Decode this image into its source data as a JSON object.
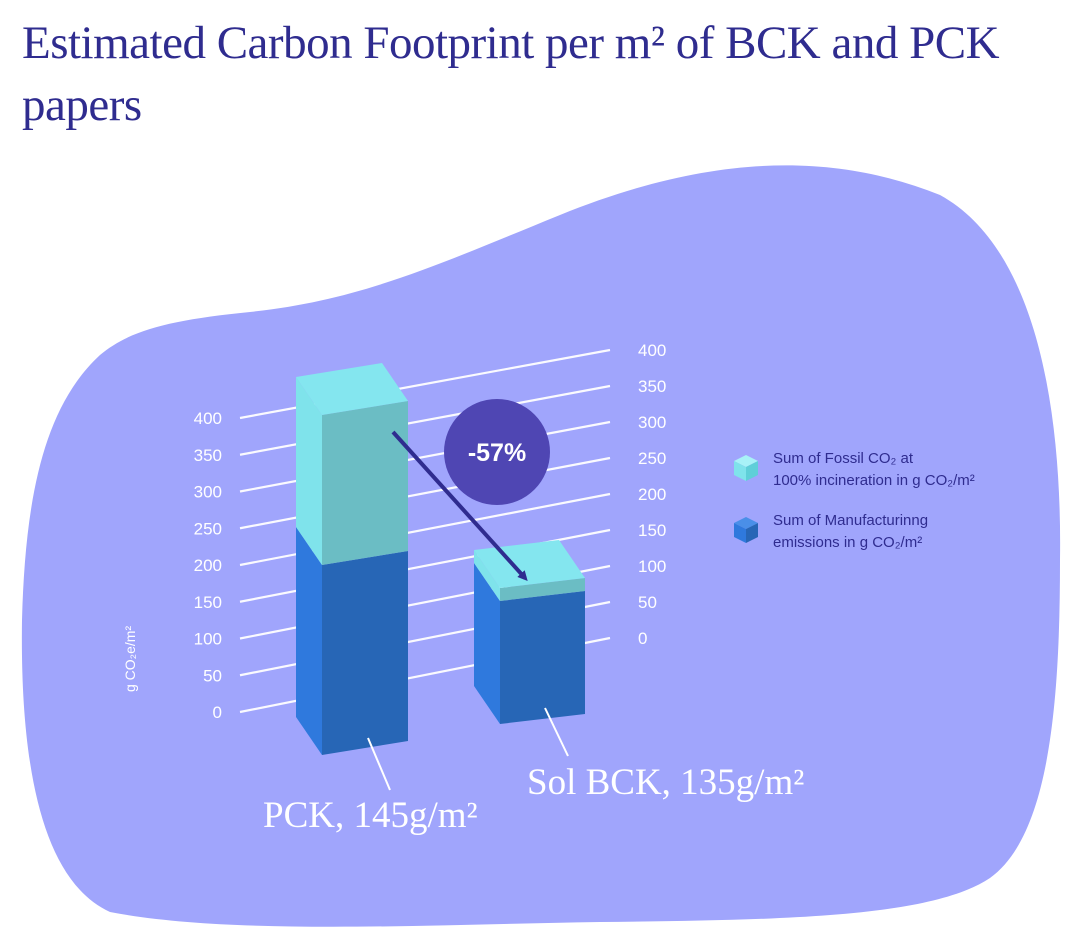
{
  "title": "Estimated Carbon Footprint per m² of BCK and PCK papers",
  "colors": {
    "blob": "#a0a5fc",
    "title": "#2f2c8f",
    "fossil_front": "#6bbdc4",
    "fossil_side": "#7fe3eb",
    "fossil_top": "#84e6ef",
    "manufacturing_front": "#2766b6",
    "manufacturing_side": "#2f79dd",
    "badge": "#4f46b3",
    "arrow": "#2f2c8f"
  },
  "chart_data": {
    "type": "bar",
    "stacked": true,
    "three_d": true,
    "categories": [
      "PCK, 145g/m²",
      "Sol BCK, 135g/m²"
    ],
    "series": [
      {
        "name": "Sum of Manufacturinng emissions in g CO₂/m²",
        "icon": "blue-cube-icon",
        "values": [
          190,
          123
        ]
      },
      {
        "name": "Sum of Fossil CO₂ at 100% incineration in g CO₂/m²",
        "icon": "cyan-cube-icon",
        "values": [
          150,
          13
        ]
      }
    ],
    "ylabel": "g CO₂e/m²",
    "ylim": [
      0,
      400
    ],
    "y_ticks_left": [
      "400",
      "350",
      "300",
      "250",
      "200",
      "150",
      "100",
      "50",
      "0"
    ],
    "y_ticks_right": [
      "400",
      "350",
      "300",
      "250",
      "200",
      "150",
      "100",
      "50",
      "0"
    ],
    "annotation": {
      "text": "-57%",
      "from": "PCK, 145g/m²",
      "to": "Sol BCK, 135g/m²"
    },
    "legend_position": "right",
    "grid": true
  }
}
